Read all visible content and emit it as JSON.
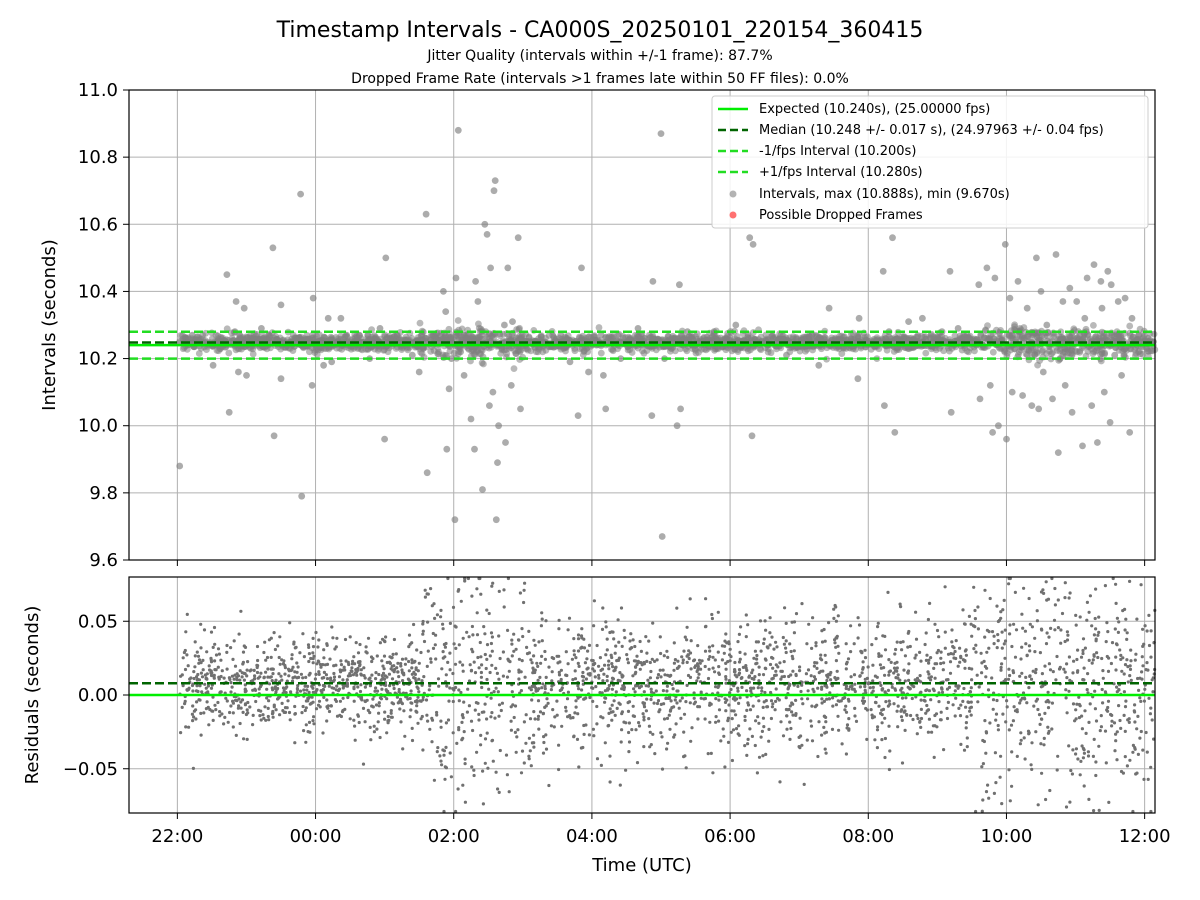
{
  "figure": {
    "title": "Timestamp Intervals - CA000S_20250101_220154_360415",
    "subtitle_1": "Jitter Quality (intervals within +/-1 frame): 87.7%",
    "subtitle_2": "Dropped Frame Rate (intervals >1 frames late within 50 FF files): 0.0%",
    "xlabel": "Time (UTC)"
  },
  "colors": {
    "expected": "#00ee00",
    "median": "#006400",
    "interval_band": "#22dd22",
    "points": "#808080",
    "dropped": "#ff4d4d",
    "grid": "#b0b0b0"
  },
  "chart_data": [
    {
      "type": "scatter",
      "name": "intervals",
      "ylabel": "Intervals (seconds)",
      "ylim": [
        9.6,
        11.0
      ],
      "yticks": [
        "9.6",
        "9.8",
        "10.0",
        "10.2",
        "10.4",
        "10.6",
        "10.8",
        "11.0"
      ],
      "xlim_hours": [
        21.3,
        36.15
      ],
      "xticks": [
        "22:00",
        "00:00",
        "02:00",
        "04:00",
        "06:00",
        "08:00",
        "10:00",
        "12:00"
      ],
      "grid": true,
      "legend_position": "upper-right",
      "reference_lines": {
        "expected": 10.24,
        "median": 10.248,
        "minus_1fps": 10.2,
        "plus_1fps": 10.28
      },
      "legend": [
        "Expected (10.240s), (25.00000 fps)",
        "Median (10.248 +/- 0.017 s), (24.97963 +/- 0.04 fps)",
        "-1/fps Interval (10.200s)",
        "+1/fps Interval (10.280s)",
        "Intervals, max (10.888s), min (9.670s)",
        "Possible Dropped Frames"
      ],
      "outliers": [
        [
          "22:02",
          9.88
        ],
        [
          "22:13",
          10.27
        ],
        [
          "22:20",
          10.25
        ],
        [
          "22:31",
          10.18
        ],
        [
          "22:37",
          10.25
        ],
        [
          "22:43",
          10.45
        ],
        [
          "22:45",
          10.04
        ],
        [
          "22:50",
          10.28
        ],
        [
          "22:51",
          10.37
        ],
        [
          "22:53",
          10.16
        ],
        [
          "22:58",
          10.35
        ],
        [
          "23:00",
          10.15
        ],
        [
          "23:13",
          10.29
        ],
        [
          "23:23",
          10.53
        ],
        [
          "23:24",
          9.97
        ],
        [
          "23:30",
          10.36
        ],
        [
          "23:30",
          10.14
        ],
        [
          "23:47",
          10.69
        ],
        [
          "23:48",
          9.79
        ],
        [
          "23:51",
          10.24
        ],
        [
          "23:57",
          10.12
        ],
        [
          "23:58",
          10.38
        ],
        [
          "00:07",
          10.18
        ],
        [
          "00:11",
          10.32
        ],
        [
          "00:14",
          10.19
        ],
        [
          "00:22",
          10.32
        ],
        [
          "00:27",
          10.27
        ],
        [
          "00:38",
          10.27
        ],
        [
          "00:47",
          10.2
        ],
        [
          "00:56",
          10.29
        ],
        [
          "01:00",
          9.96
        ],
        [
          "01:01",
          10.5
        ],
        [
          "01:11",
          10.27
        ],
        [
          "01:24",
          10.21
        ],
        [
          "01:30",
          10.16
        ],
        [
          "01:36",
          10.63
        ],
        [
          "01:37",
          9.86
        ],
        [
          "01:42",
          10.27
        ],
        [
          "01:51",
          10.4
        ],
        [
          "01:53",
          10.34
        ],
        [
          "01:54",
          9.93
        ],
        [
          "01:56",
          10.11
        ],
        [
          "01:58",
          10.2
        ],
        [
          "02:01",
          9.72
        ],
        [
          "02:02",
          10.44
        ],
        [
          "02:04",
          10.88
        ],
        [
          "02:06",
          10.22
        ],
        [
          "02:09",
          10.15
        ],
        [
          "02:15",
          10.02
        ],
        [
          "02:18",
          9.93
        ],
        [
          "02:19",
          10.43
        ],
        [
          "02:21",
          10.37
        ],
        [
          "02:25",
          9.81
        ],
        [
          "02:27",
          10.6
        ],
        [
          "02:29",
          10.57
        ],
        [
          "02:31",
          10.06
        ],
        [
          "02:32",
          10.47
        ],
        [
          "02:34",
          10.1
        ],
        [
          "02:35",
          10.7
        ],
        [
          "02:36",
          10.73
        ],
        [
          "02:37",
          9.72
        ],
        [
          "02:38",
          9.89
        ],
        [
          "02:39",
          10.0
        ],
        [
          "02:40",
          10.24
        ],
        [
          "02:44",
          10.3
        ],
        [
          "02:45",
          9.95
        ],
        [
          "02:47",
          10.47
        ],
        [
          "02:50",
          10.12
        ],
        [
          "02:51",
          10.31
        ],
        [
          "02:54",
          10.24
        ],
        [
          "02:56",
          10.56
        ],
        [
          "02:58",
          10.05
        ],
        [
          "03:10",
          10.25
        ],
        [
          "03:33",
          10.27
        ],
        [
          "03:41",
          10.19
        ],
        [
          "03:48",
          10.03
        ],
        [
          "03:51",
          10.47
        ],
        [
          "03:57",
          10.16
        ],
        [
          "04:04",
          10.24
        ],
        [
          "04:08",
          10.27
        ],
        [
          "04:10",
          10.15
        ],
        [
          "04:12",
          10.05
        ],
        [
          "04:25",
          10.2
        ],
        [
          "04:40",
          10.29
        ],
        [
          "04:52",
          10.03
        ],
        [
          "04:53",
          10.43
        ],
        [
          "05:00",
          10.87
        ],
        [
          "05:01",
          9.67
        ],
        [
          "05:03",
          10.2
        ],
        [
          "05:14",
          10.0
        ],
        [
          "05:16",
          10.42
        ],
        [
          "05:17",
          10.05
        ],
        [
          "05:23",
          10.28
        ],
        [
          "05:46",
          10.28
        ],
        [
          "06:05",
          10.3
        ],
        [
          "06:15",
          10.23
        ],
        [
          "06:17",
          10.56
        ],
        [
          "06:19",
          9.97
        ],
        [
          "06:20",
          10.54
        ],
        [
          "06:33",
          10.24
        ],
        [
          "06:49",
          10.21
        ],
        [
          "07:11",
          10.27
        ],
        [
          "07:17",
          10.18
        ],
        [
          "07:26",
          10.35
        ],
        [
          "07:45",
          10.24
        ],
        [
          "07:51",
          10.14
        ],
        [
          "07:52",
          10.32
        ],
        [
          "08:13",
          10.46
        ],
        [
          "08:14",
          10.06
        ],
        [
          "08:18",
          10.28
        ],
        [
          "08:21",
          10.56
        ],
        [
          "08:23",
          9.98
        ],
        [
          "08:35",
          10.31
        ],
        [
          "08:47",
          10.32
        ],
        [
          "09:04",
          10.28
        ],
        [
          "09:11",
          10.46
        ],
        [
          "09:12",
          10.04
        ],
        [
          "09:18",
          10.29
        ],
        [
          "09:23",
          10.27
        ],
        [
          "09:36",
          10.42
        ],
        [
          "09:37",
          10.08
        ],
        [
          "09:43",
          10.47
        ],
        [
          "09:46",
          10.12
        ],
        [
          "09:48",
          9.98
        ],
        [
          "09:50",
          10.44
        ],
        [
          "09:53",
          10.0
        ],
        [
          "09:59",
          10.54
        ],
        [
          "10:00",
          9.96
        ],
        [
          "10:03",
          10.38
        ],
        [
          "10:05",
          10.1
        ],
        [
          "10:10",
          10.43
        ],
        [
          "10:14",
          10.09
        ],
        [
          "10:18",
          10.35
        ],
        [
          "10:22",
          10.06
        ],
        [
          "10:26",
          10.5
        ],
        [
          "10:28",
          10.05
        ],
        [
          "10:30",
          10.4
        ],
        [
          "10:32",
          10.16
        ],
        [
          "10:35",
          10.3
        ],
        [
          "10:40",
          10.08
        ],
        [
          "10:43",
          10.51
        ],
        [
          "10:45",
          9.92
        ],
        [
          "10:49",
          10.37
        ],
        [
          "10:51",
          10.12
        ],
        [
          "10:55",
          10.41
        ],
        [
          "10:57",
          10.04
        ],
        [
          "11:01",
          10.37
        ],
        [
          "11:06",
          9.94
        ],
        [
          "11:08",
          10.32
        ],
        [
          "11:10",
          10.44
        ],
        [
          "11:14",
          10.06
        ],
        [
          "11:16",
          10.48
        ],
        [
          "11:19",
          9.95
        ],
        [
          "11:22",
          10.43
        ],
        [
          "11:23",
          10.35
        ],
        [
          "11:25",
          10.1
        ],
        [
          "11:28",
          10.46
        ],
        [
          "11:30",
          10.01
        ],
        [
          "11:31",
          10.42
        ],
        [
          "11:34",
          10.21
        ],
        [
          "11:37",
          10.37
        ],
        [
          "11:40",
          10.15
        ],
        [
          "11:43",
          10.38
        ],
        [
          "11:47",
          9.98
        ],
        [
          "11:49",
          10.32
        ],
        [
          "11:55",
          10.27
        ],
        [
          "12:00",
          10.25
        ],
        [
          "12:03",
          10.26
        ]
      ]
    },
    {
      "type": "scatter",
      "name": "residuals",
      "ylabel": "Residuals (seconds)",
      "ylim": [
        -0.08,
        0.08
      ],
      "yticks": [
        "−0.05",
        "0.00",
        "0.05"
      ],
      "xticks": [
        "22:00",
        "00:00",
        "02:00",
        "04:00",
        "06:00",
        "08:00",
        "10:00",
        "12:00"
      ],
      "grid": true,
      "reference_lines": {
        "zero": 0.0,
        "median_offset": 0.008
      }
    }
  ]
}
